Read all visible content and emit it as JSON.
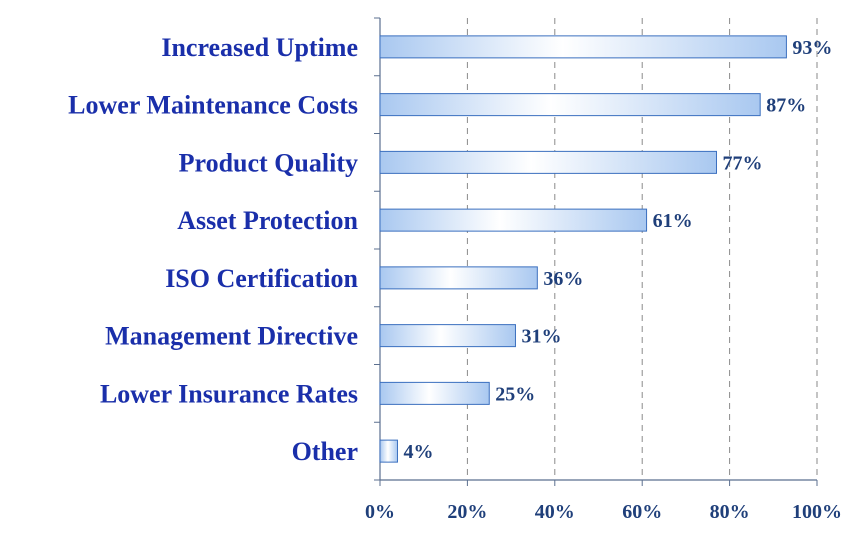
{
  "chart_data": {
    "type": "bar",
    "orientation": "horizontal",
    "categories": [
      "Increased Uptime",
      "Lower Maintenance Costs",
      "Product Quality",
      "Asset Protection",
      "ISO Certification",
      "Management Directive",
      "Lower Insurance Rates",
      "Other"
    ],
    "values": [
      93,
      87,
      77,
      61,
      36,
      31,
      25,
      4
    ],
    "value_labels": [
      "93%",
      "87%",
      "77%",
      "61%",
      "36%",
      "31%",
      "25%",
      "4%"
    ],
    "x_ticks": [
      0,
      20,
      40,
      60,
      80,
      100
    ],
    "x_tick_labels": [
      "0%",
      "20%",
      "40%",
      "60%",
      "80%",
      "100%"
    ],
    "xlim": [
      0,
      100
    ],
    "title": "",
    "xlabel": "",
    "ylabel": "",
    "grid": "vertical-dashed",
    "legend": "none",
    "colors": {
      "bar_fill_edge": "#a9c8f0",
      "bar_fill_center": "#ffffff",
      "bar_stroke": "#3a6fbf",
      "axis": "#5b6f8f",
      "grid": "#8a8a8a",
      "category_text": "#1a2faa",
      "value_text": "#1f3f7a"
    }
  }
}
